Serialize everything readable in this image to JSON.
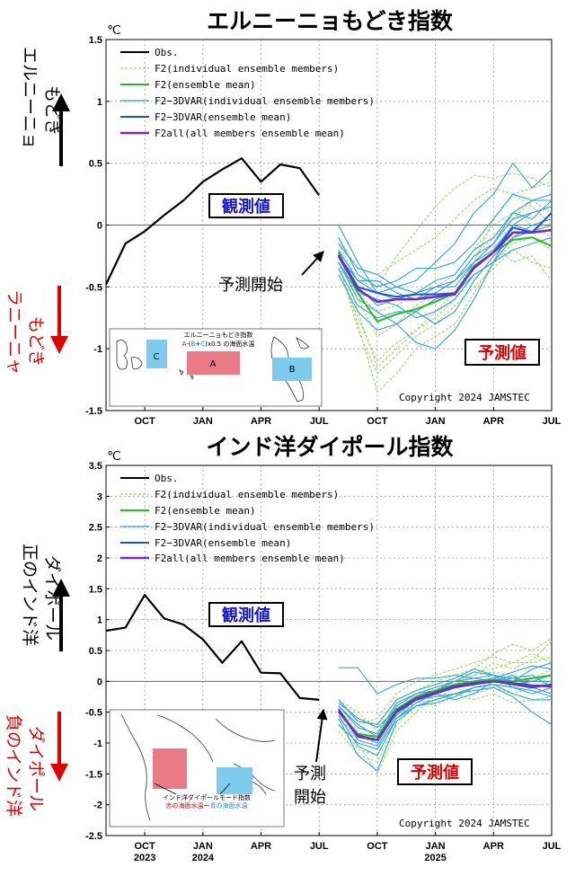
{
  "colors": {
    "obs": "#000000",
    "f2_members": "#9fd65a",
    "f2_mean": "#22c022",
    "f2_3dvar_members": "#2ba3e6",
    "f2_3dvar_mean": "#1c4fe0",
    "f2all_mean": "#7a28c8",
    "blue_text": "#1515d0",
    "red_text": "#e00000",
    "region_red": "#ea7a86",
    "region_blue": "#7ecbee"
  },
  "chart_data": [
    {
      "type": "line",
      "title": "エルニーニョもどき指数",
      "unit": "℃",
      "ylim": [
        -1.5,
        1.5
      ],
      "yticks": [
        "1.5",
        "1",
        "0.5",
        "0",
        "-0.5",
        "-1",
        "-1.5"
      ],
      "x_range": [
        "2023-08",
        "2025-07"
      ],
      "xticks": [
        {
          "label": "OCT",
          "date": "2023-10"
        },
        {
          "label": "JAN",
          "date": "2024-01"
        },
        {
          "label": "APR",
          "date": "2024-04"
        },
        {
          "label": "JUL",
          "date": "2024-07"
        },
        {
          "label": "OCT",
          "date": "2024-10"
        },
        {
          "label": "JAN",
          "date": "2025-01"
        },
        {
          "label": "APR",
          "date": "2025-04"
        },
        {
          "label": "JUL",
          "date": "2025-07"
        }
      ],
      "grid": true,
      "legend_position": "top-left",
      "legend": [
        "Obs.",
        "F2(individual ensemble members)",
        "F2(ensemble mean)",
        "F2−3DVAR(individual ensemble members)",
        "F2−3DVAR(ensemble mean)",
        "F2all(all members ensemble mean)"
      ],
      "observed": {
        "name": "Obs.",
        "x": [
          "2023-08",
          "2023-09",
          "2023-10",
          "2023-11",
          "2023-12",
          "2024-01",
          "2024-02",
          "2024-03",
          "2024-04",
          "2024-05",
          "2024-06",
          "2024-07"
        ],
        "values": [
          -0.48,
          -0.15,
          -0.05,
          0.08,
          0.2,
          0.35,
          0.45,
          0.54,
          0.35,
          0.49,
          0.46,
          0.24
        ]
      },
      "forecast_x": [
        "2024-08",
        "2024-09",
        "2024-10",
        "2024-11",
        "2024-12",
        "2025-01",
        "2025-02",
        "2025-03",
        "2025-04",
        "2025-05",
        "2025-06",
        "2025-07"
      ],
      "series": [
        {
          "name": "F2(ensemble mean)",
          "values": [
            -0.22,
            -0.55,
            -0.78,
            -0.72,
            -0.68,
            -0.62,
            -0.55,
            -0.33,
            -0.22,
            -0.12,
            -0.1,
            -0.17
          ]
        },
        {
          "name": "F2−3DVAR(ensemble mean)",
          "values": [
            -0.24,
            -0.5,
            -0.55,
            -0.58,
            -0.56,
            -0.56,
            -0.55,
            -0.35,
            -0.22,
            -0.02,
            -0.06,
            0.1
          ]
        },
        {
          "name": "F2all(all members ensemble mean)",
          "values": [
            -0.25,
            -0.52,
            -0.62,
            -0.6,
            -0.6,
            -0.58,
            -0.56,
            -0.34,
            -0.22,
            -0.06,
            -0.06,
            -0.04
          ]
        }
      ],
      "f2_members": [
        [
          -0.2,
          -0.7,
          -1.15,
          -1.0,
          -0.85,
          -0.7,
          -0.55,
          -0.3,
          0.05,
          0.25,
          0.3,
          0.35
        ],
        [
          -0.3,
          -0.8,
          -1.35,
          -1.2,
          -1.0,
          -0.9,
          -0.8,
          -0.55,
          -0.3,
          -0.15,
          -0.1,
          -0.2
        ],
        [
          -0.15,
          -0.45,
          -0.5,
          -0.25,
          -0.05,
          0.15,
          0.3,
          0.4,
          0.38,
          0.42,
          0.38,
          0.3
        ],
        [
          -0.25,
          -0.6,
          -0.9,
          -0.8,
          -0.65,
          -0.55,
          -0.45,
          -0.25,
          -0.1,
          0.05,
          0.2,
          0.1
        ],
        [
          -0.35,
          -0.75,
          -1.1,
          -0.95,
          -0.85,
          -0.75,
          -0.6,
          -0.3,
          -0.15,
          -0.3,
          -0.25,
          -0.45
        ],
        [
          -0.2,
          -0.55,
          -0.7,
          -0.65,
          -0.55,
          -0.5,
          -0.4,
          -0.2,
          0.0,
          0.1,
          0.0,
          -0.1
        ],
        [
          -0.3,
          -0.85,
          -1.2,
          -1.05,
          -0.9,
          -0.8,
          -0.65,
          -0.5,
          -0.35,
          -0.2,
          -0.3,
          -0.35
        ],
        [
          -0.1,
          -0.35,
          -0.4,
          -0.3,
          -0.2,
          -0.1,
          0.05,
          0.2,
          0.3,
          0.25,
          0.15,
          0.0
        ]
      ],
      "f2_3dvar_members": [
        [
          0.0,
          -0.3,
          -0.55,
          -0.5,
          -0.45,
          -0.3,
          -0.15,
          0.1,
          0.25,
          0.5,
          0.3,
          0.45
        ],
        [
          -0.3,
          -0.6,
          -0.7,
          -0.8,
          -0.95,
          -1.0,
          -0.85,
          -0.6,
          -0.3,
          0.0,
          0.1,
          0.15
        ],
        [
          -0.2,
          -0.45,
          -0.45,
          -0.55,
          -0.6,
          -0.55,
          -0.45,
          -0.3,
          -0.15,
          0.1,
          0.2,
          0.2
        ],
        [
          -0.35,
          -0.65,
          -0.75,
          -0.7,
          -0.7,
          -0.8,
          -0.7,
          -0.45,
          -0.25,
          -0.1,
          -0.05,
          0.0
        ],
        [
          -0.1,
          -0.4,
          -0.5,
          -0.45,
          -0.35,
          -0.35,
          -0.3,
          -0.15,
          0.05,
          0.25,
          0.2,
          0.25
        ],
        [
          -0.3,
          -0.55,
          -0.6,
          -0.65,
          -0.75,
          -0.7,
          -0.6,
          -0.4,
          -0.3,
          -0.1,
          0.0,
          0.05
        ],
        [
          -0.25,
          -0.45,
          -0.55,
          -0.6,
          -0.6,
          -0.5,
          -0.5,
          -0.3,
          -0.2,
          0.0,
          -0.05,
          0.1
        ],
        [
          -0.4,
          -0.7,
          -0.85,
          -0.8,
          -0.7,
          -0.6,
          -0.55,
          -0.4,
          -0.3,
          -0.2,
          -0.15,
          -0.1
        ],
        [
          -0.15,
          -0.35,
          -0.4,
          -0.5,
          -0.55,
          -0.45,
          -0.4,
          -0.2,
          -0.1,
          0.1,
          0.05,
          0.2
        ],
        [
          -0.25,
          -0.5,
          -0.65,
          -0.6,
          -0.55,
          -0.5,
          -0.45,
          -0.25,
          -0.15,
          0.05,
          0.1,
          0.15
        ]
      ],
      "labels": {
        "observed": "観測値",
        "forecast": "予測値",
        "forecast_start": "予測開始",
        "copyright": "Copyright 2024 JAMSTEC",
        "side_upper": [
          "エルニーニョ",
          "もどき"
        ],
        "side_lower": [
          "ラニーニャ",
          "もどき"
        ]
      },
      "inset": {
        "title": "エルニーニョもどき指数",
        "formula": [
          "A",
          "-(",
          "B",
          "+",
          "C",
          ")x0.5 の海面水温"
        ],
        "regions": [
          "A",
          "B",
          "C"
        ]
      }
    },
    {
      "type": "line",
      "title": "インド洋ダイポール指数",
      "unit": "℃",
      "ylim": [
        -2.5,
        3.5
      ],
      "yticks": [
        "3.5",
        "3",
        "2.5",
        "2",
        "1.5",
        "1",
        "0.5",
        "0",
        "-0.5",
        "-1",
        "-1.5",
        "-2",
        "-2.5"
      ],
      "x_range": [
        "2023-08",
        "2025-07"
      ],
      "xticks": [
        {
          "label": "OCT",
          "date": "2023-10",
          "year": "2023"
        },
        {
          "label": "JAN",
          "date": "2024-01",
          "year": "2024"
        },
        {
          "label": "APR",
          "date": "2024-04"
        },
        {
          "label": "JUL",
          "date": "2024-07"
        },
        {
          "label": "OCT",
          "date": "2024-10"
        },
        {
          "label": "JAN",
          "date": "2025-01",
          "year": "2025"
        },
        {
          "label": "APR",
          "date": "2025-04"
        },
        {
          "label": "JUL",
          "date": "2025-07"
        }
      ],
      "grid": true,
      "legend_position": "top-left",
      "legend": [
        "Obs.",
        "F2(individual ensemble members)",
        "F2(ensemble mean)",
        "F2−3DVAR(individual ensemble members)",
        "F2−3DVAR(ensemble mean)",
        "F2all(all members ensemble mean)"
      ],
      "observed": {
        "name": "Obs.",
        "x": [
          "2023-08",
          "2023-09",
          "2023-10",
          "2023-11",
          "2023-12",
          "2024-01",
          "2024-02",
          "2024-03",
          "2024-04",
          "2024-05",
          "2024-06",
          "2024-07"
        ],
        "values": [
          0.82,
          0.87,
          1.4,
          1.02,
          0.92,
          0.68,
          0.3,
          0.65,
          0.14,
          0.13,
          -0.27,
          -0.3
        ]
      },
      "forecast_x": [
        "2024-08",
        "2024-09",
        "2024-10",
        "2024-11",
        "2024-12",
        "2025-01",
        "2025-02",
        "2025-03",
        "2025-04",
        "2025-05",
        "2025-06",
        "2025-07"
      ],
      "series": [
        {
          "name": "F2(ensemble mean)",
          "values": [
            -0.5,
            -0.85,
            -0.9,
            -0.45,
            -0.25,
            -0.15,
            -0.05,
            0.0,
            0.02,
            0.0,
            0.05,
            0.1
          ]
        },
        {
          "name": "F2−3DVAR(ensemble mean)",
          "values": [
            -0.45,
            -0.9,
            -0.95,
            -0.5,
            -0.3,
            -0.2,
            -0.1,
            -0.05,
            0.0,
            -0.05,
            -0.1,
            -0.05
          ]
        },
        {
          "name": "F2all(all members ensemble mean)",
          "values": [
            -0.48,
            -0.88,
            -0.95,
            -0.48,
            -0.28,
            -0.18,
            -0.08,
            -0.03,
            0.0,
            -0.03,
            -0.07,
            -0.08
          ]
        }
      ],
      "f2_members": [
        [
          -0.3,
          -0.6,
          -0.7,
          -0.3,
          -0.15,
          0.0,
          0.1,
          0.2,
          0.45,
          0.6,
          0.5,
          0.7
        ],
        [
          -0.5,
          -1.0,
          -1.5,
          -0.8,
          -0.5,
          -0.2,
          -0.05,
          0.1,
          0.3,
          0.2,
          0.35,
          0.65
        ],
        [
          -0.7,
          -1.1,
          -1.2,
          -0.6,
          -0.3,
          -0.4,
          -0.2,
          -0.1,
          0.0,
          -0.1,
          0.0,
          0.1
        ],
        [
          -0.4,
          -0.7,
          -0.6,
          -0.2,
          0.0,
          0.1,
          0.2,
          0.3,
          0.4,
          0.3,
          0.3,
          0.4
        ],
        [
          -0.6,
          -0.9,
          -1.0,
          -0.5,
          -0.35,
          -0.3,
          -0.1,
          -0.2,
          -0.1,
          -0.2,
          -0.1,
          0.0
        ],
        [
          -0.3,
          -0.5,
          -0.8,
          -0.4,
          -0.2,
          -0.1,
          0.0,
          0.1,
          0.15,
          0.1,
          0.05,
          0.2
        ],
        [
          -0.8,
          -1.2,
          -1.3,
          -0.7,
          -0.4,
          -0.3,
          -0.2,
          -0.3,
          -0.2,
          -0.35,
          -0.3,
          -0.25
        ],
        [
          -0.45,
          -0.8,
          -0.95,
          -0.55,
          -0.3,
          -0.15,
          0.05,
          0.15,
          0.2,
          0.3,
          0.45,
          0.3
        ]
      ],
      "f2_3dvar_members": [
        [
          0.22,
          0.22,
          -0.2,
          -0.05,
          0.05,
          0.05,
          0.1,
          0.05,
          0.1,
          0.05,
          0.0,
          0.0
        ],
        [
          -0.4,
          -0.7,
          -0.9,
          -0.4,
          -0.2,
          -0.1,
          0.0,
          0.15,
          0.1,
          0.0,
          0.2,
          0.3
        ],
        [
          -0.6,
          -1.2,
          -1.45,
          -0.65,
          -0.4,
          -0.3,
          -0.2,
          -0.1,
          -0.05,
          -0.2,
          -0.3,
          -0.3
        ],
        [
          -0.7,
          -1.0,
          -1.1,
          -0.6,
          -0.35,
          -0.2,
          -0.3,
          -0.2,
          0.0,
          0.1,
          -0.1,
          -0.2
        ],
        [
          -0.3,
          -0.65,
          -0.7,
          -0.3,
          -0.15,
          -0.05,
          0.05,
          0.2,
          0.1,
          -0.1,
          -0.2,
          -0.1
        ],
        [
          -0.5,
          -0.85,
          -1.0,
          -0.5,
          -0.25,
          -0.15,
          -0.1,
          0.0,
          0.05,
          -0.05,
          0.0,
          0.1
        ],
        [
          -0.45,
          -0.95,
          -1.05,
          -0.55,
          -0.3,
          -0.25,
          -0.2,
          -0.15,
          -0.1,
          -0.25,
          -0.5,
          -0.7
        ],
        [
          -0.35,
          -0.6,
          -0.75,
          -0.45,
          -0.3,
          -0.2,
          -0.1,
          -0.05,
          0.05,
          0.15,
          0.25,
          0.2
        ],
        [
          -0.55,
          -1.05,
          -1.2,
          -0.6,
          -0.4,
          -0.35,
          -0.25,
          -0.1,
          -0.05,
          -0.1,
          -0.15,
          -0.25
        ],
        [
          -0.4,
          -0.75,
          -0.85,
          -0.35,
          -0.2,
          -0.15,
          0.0,
          0.05,
          0.0,
          0.05,
          0.1,
          -0.1
        ]
      ],
      "labels": {
        "observed": "観測値",
        "forecast": "予測値",
        "forecast_start": [
          "予測",
          "開始"
        ],
        "copyright": "Copyright 2024 JAMSTEC",
        "side_upper": [
          "正のインド洋",
          "ダイポール"
        ],
        "side_lower": [
          "負のインド洋",
          "ダイポール"
        ]
      },
      "inset": {
        "title": "インド洋ダイポールモード指数",
        "formula": [
          "赤の海面水温",
          "ー",
          "青の海面水温"
        ]
      }
    }
  ]
}
